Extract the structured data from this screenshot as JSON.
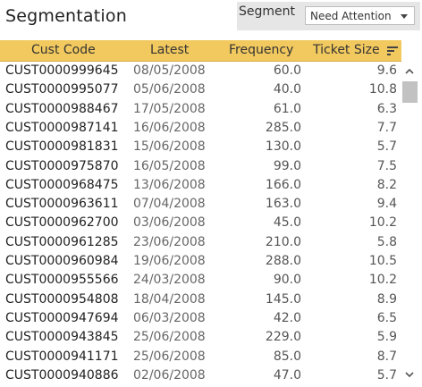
{
  "title": "Segmentation",
  "segment_filter": {
    "label": "Segment",
    "value": "Need Attention"
  },
  "columns": [
    "Cust Code",
    "Latest",
    "Frequency",
    "Ticket Size"
  ],
  "rows": [
    [
      "CUST0000999645",
      "08/05/2008",
      "60.0",
      "9.6"
    ],
    [
      "CUST0000995077",
      "05/06/2008",
      "40.0",
      "10.8"
    ],
    [
      "CUST0000988467",
      "17/05/2008",
      "61.0",
      "6.3"
    ],
    [
      "CUST0000987141",
      "16/06/2008",
      "285.0",
      "7.7"
    ],
    [
      "CUST0000981831",
      "15/06/2008",
      "130.0",
      "5.7"
    ],
    [
      "CUST0000975870",
      "16/05/2008",
      "99.0",
      "7.5"
    ],
    [
      "CUST0000968475",
      "13/06/2008",
      "166.0",
      "8.2"
    ],
    [
      "CUST0000963611",
      "07/04/2008",
      "163.0",
      "9.4"
    ],
    [
      "CUST0000962700",
      "03/06/2008",
      "45.0",
      "10.2"
    ],
    [
      "CUST0000961285",
      "23/06/2008",
      "210.0",
      "5.8"
    ],
    [
      "CUST0000960984",
      "19/06/2008",
      "288.0",
      "10.5"
    ],
    [
      "CUST0000955566",
      "24/03/2008",
      "90.0",
      "10.2"
    ],
    [
      "CUST0000954808",
      "18/04/2008",
      "145.0",
      "8.9"
    ],
    [
      "CUST0000947694",
      "06/03/2008",
      "42.0",
      "6.5"
    ],
    [
      "CUST0000943845",
      "25/06/2008",
      "229.0",
      "5.9"
    ],
    [
      "CUST0000941171",
      "25/06/2008",
      "85.0",
      "8.7"
    ],
    [
      "CUST0000940886",
      "02/06/2008",
      "47.0",
      "5.7"
    ]
  ],
  "colors": {
    "header_bg": "#f2c95f",
    "filter_bg": "#e6e6e6",
    "scroll_thumb": "#c2c2c2"
  },
  "icons": {
    "sort": "sort-descending-icon",
    "dropdown": "chevron-down-icon",
    "scroll_up": "chevron-up-icon",
    "scroll_down": "chevron-down-icon"
  }
}
